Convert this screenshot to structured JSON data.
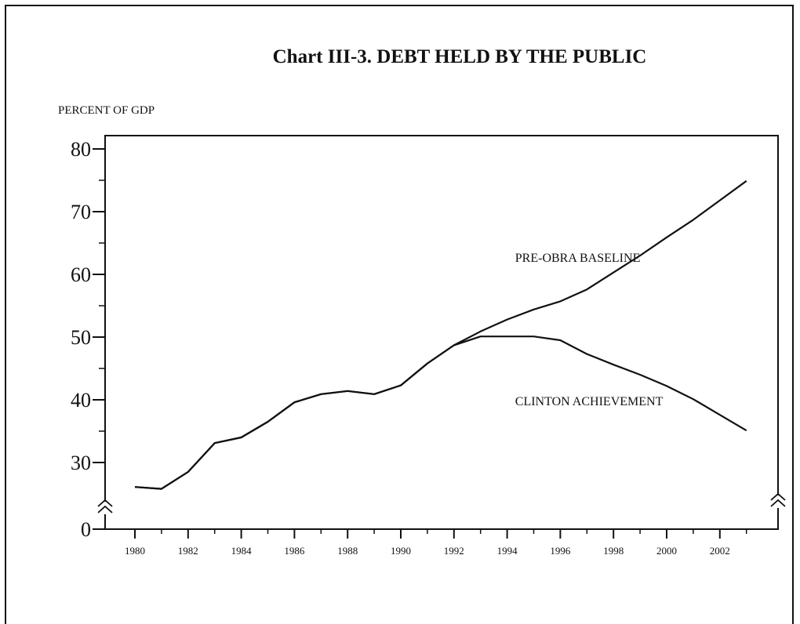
{
  "chart_data": {
    "type": "line",
    "title": "Chart III-3. DEBT HELD BY THE PUBLIC",
    "ylabel": "PERCENT OF GDP",
    "xlabel": "",
    "xlim": [
      1979,
      2004
    ],
    "ylim": [
      20,
      80
    ],
    "y_break": true,
    "y_ticks": [
      {
        "value": 80,
        "label": "80"
      },
      {
        "value": 70,
        "label": "70"
      },
      {
        "value": 60,
        "label": "60"
      },
      {
        "value": 50,
        "label": "50"
      },
      {
        "value": 40,
        "label": "40"
      },
      {
        "value": 30,
        "label": "30"
      },
      {
        "value": 0,
        "label": "0"
      }
    ],
    "x_ticks": [
      "1980",
      "1982",
      "1984",
      "1986",
      "1988",
      "1990",
      "1992",
      "1994",
      "1996",
      "1998",
      "2000",
      "2002"
    ],
    "series": [
      {
        "name": "PRE-OBRA BASELINE",
        "x": [
          1980,
          1981,
          1982,
          1983,
          1984,
          1985,
          1986,
          1987,
          1988,
          1989,
          1990,
          1991,
          1992,
          1993,
          1994,
          1995,
          1996,
          1997,
          1998,
          1999,
          2000,
          2001,
          2002,
          2003
        ],
        "values": [
          26.1,
          25.8,
          28.5,
          33.1,
          34.0,
          36.5,
          39.6,
          40.9,
          41.4,
          40.9,
          42.3,
          45.8,
          48.7,
          50.9,
          52.8,
          54.4,
          55.7,
          57.6,
          60.3,
          63.0,
          65.9,
          68.7,
          71.8,
          74.9
        ]
      },
      {
        "name": "CLINTON ACHIEVEMENT",
        "x": [
          1980,
          1981,
          1982,
          1983,
          1984,
          1985,
          1986,
          1987,
          1988,
          1989,
          1990,
          1991,
          1992,
          1993,
          1994,
          1995,
          1996,
          1997,
          1998,
          1999,
          2000,
          2001,
          2002,
          2003
        ],
        "values": [
          26.1,
          25.8,
          28.5,
          33.1,
          34.0,
          36.5,
          39.6,
          40.9,
          41.4,
          40.9,
          42.3,
          45.8,
          48.7,
          50.1,
          50.1,
          50.1,
          49.5,
          47.3,
          45.6,
          44.0,
          42.2,
          40.1,
          37.6,
          35.1
        ]
      }
    ],
    "annotations": [
      {
        "text": "PRE-OBRA BASELINE",
        "x": 1994.3,
        "y": 62
      },
      {
        "text": "CLINTON ACHIEVEMENT",
        "x": 1994.3,
        "y": 39.1
      }
    ]
  }
}
